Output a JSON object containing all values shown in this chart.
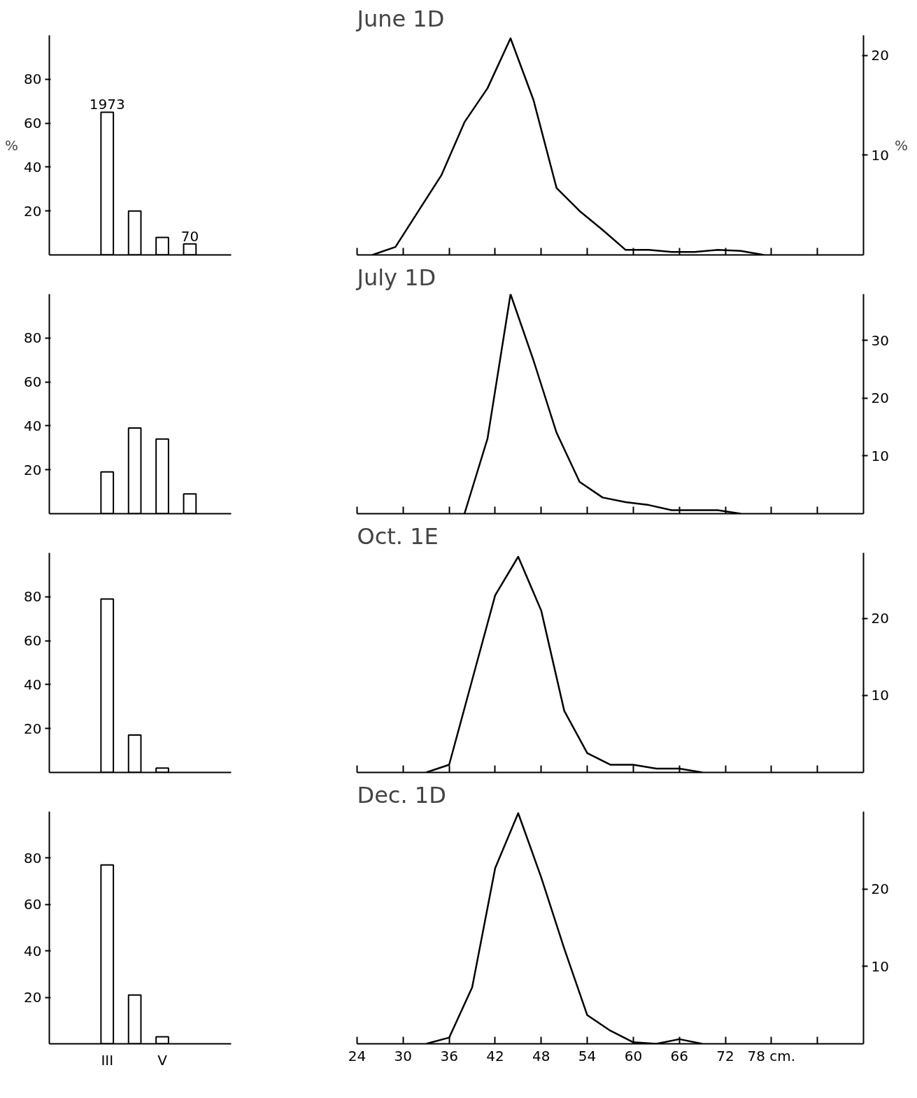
{
  "chart_data": [
    {
      "type": "bar",
      "categories": [
        "III",
        null,
        "V",
        null
      ],
      "values": [
        65,
        20,
        8,
        5
      ],
      "annotations": [
        {
          "text": "1973",
          "x": "III",
          "y": 65
        },
        {
          "text": "70",
          "y": 5
        }
      ],
      "color": "#ffffff",
      "ylim": [
        0,
        100
      ],
      "yticks": [
        20,
        40,
        60,
        80
      ],
      "ylabel": "%",
      "tick_labels": "y"
    },
    {
      "type": "line",
      "title": "June 1D",
      "x": [
        26,
        29,
        32,
        35,
        38,
        41,
        44,
        47,
        50,
        53,
        56,
        59,
        62,
        65,
        68,
        71,
        74,
        77
      ],
      "values": [
        0,
        0.8,
        4.4,
        8,
        13.3,
        16.7,
        21.7,
        15.5,
        6.7,
        4.4,
        2.5,
        0.5,
        0.5,
        0.3,
        0.3,
        0.5,
        0.4,
        0
      ],
      "color": "#000000",
      "xlim": [
        24,
        90
      ],
      "xticks": [
        24,
        30,
        36,
        42,
        48,
        54,
        60,
        66,
        72,
        78,
        84
      ],
      "ylim": [
        0,
        22
      ],
      "yticks": [
        10,
        20
      ],
      "ylabel": "%",
      "tick_labels": "y"
    },
    {
      "type": "bar",
      "categories": [
        "III",
        null,
        "V",
        null
      ],
      "values": [
        19,
        39,
        34,
        9
      ],
      "color": "#ffffff",
      "ylim": [
        0,
        100
      ],
      "yticks": [
        20,
        40,
        60,
        80
      ],
      "tick_labels": "y"
    },
    {
      "type": "line",
      "title": "July 1D",
      "x": [
        38,
        41,
        44,
        47,
        50,
        53,
        56,
        59,
        62,
        65,
        68,
        71,
        74
      ],
      "values": [
        0,
        13,
        38,
        26.5,
        14,
        5.5,
        2.8,
        2,
        1.5,
        0.6,
        0.6,
        0.6,
        0
      ],
      "color": "#000000",
      "xlim": [
        24,
        90
      ],
      "xticks": [
        24,
        30,
        36,
        42,
        48,
        54,
        60,
        66,
        72,
        78,
        84
      ],
      "ylim": [
        0,
        38
      ],
      "yticks": [
        10,
        20,
        30
      ],
      "tick_labels": "y"
    },
    {
      "type": "bar",
      "categories": [
        "III",
        null,
        "V",
        null
      ],
      "values": [
        79,
        17,
        2,
        null
      ],
      "color": "#ffffff",
      "ylim": [
        0,
        100
      ],
      "yticks": [
        20,
        40,
        60,
        80
      ],
      "tick_labels": "y"
    },
    {
      "type": "line",
      "title": "Oct. 1E",
      "x": [
        33,
        36,
        39,
        42,
        45,
        48,
        51,
        54,
        57,
        60,
        63,
        66,
        69
      ],
      "values": [
        0,
        1,
        12,
        23,
        28,
        21,
        8,
        2.5,
        1,
        1,
        0.5,
        0.5,
        0
      ],
      "color": "#000000",
      "xlim": [
        24,
        90
      ],
      "xticks": [
        24,
        30,
        36,
        42,
        48,
        54,
        60,
        66,
        72,
        78,
        84
      ],
      "ylim": [
        0,
        28.5
      ],
      "yticks": [
        10,
        20
      ],
      "tick_labels": "y"
    },
    {
      "type": "bar",
      "categories": [
        "III",
        null,
        "V",
        null
      ],
      "values": [
        77,
        21,
        3,
        null
      ],
      "color": "#ffffff",
      "ylim": [
        0,
        100
      ],
      "yticks": [
        20,
        40,
        60,
        80
      ]
    },
    {
      "type": "line",
      "title": "Dec. 1D",
      "x": [
        33,
        36,
        39,
        42,
        45,
        48,
        51,
        54,
        57,
        60,
        63,
        66,
        69
      ],
      "values": [
        0,
        0.8,
        7.3,
        22.7,
        29.8,
        21.5,
        12.3,
        3.7,
        1.7,
        0.2,
        0,
        0.6,
        0
      ],
      "color": "#000000",
      "xlim": [
        24,
        90
      ],
      "xticks": [
        24,
        30,
        36,
        42,
        48,
        54,
        60,
        66,
        72,
        {
          "value": 78,
          "label": "78 cm."
        },
        {
          "value": 84,
          "label": null
        }
      ],
      "ylim": [
        0,
        30
      ],
      "yticks": [
        10,
        20
      ]
    }
  ]
}
